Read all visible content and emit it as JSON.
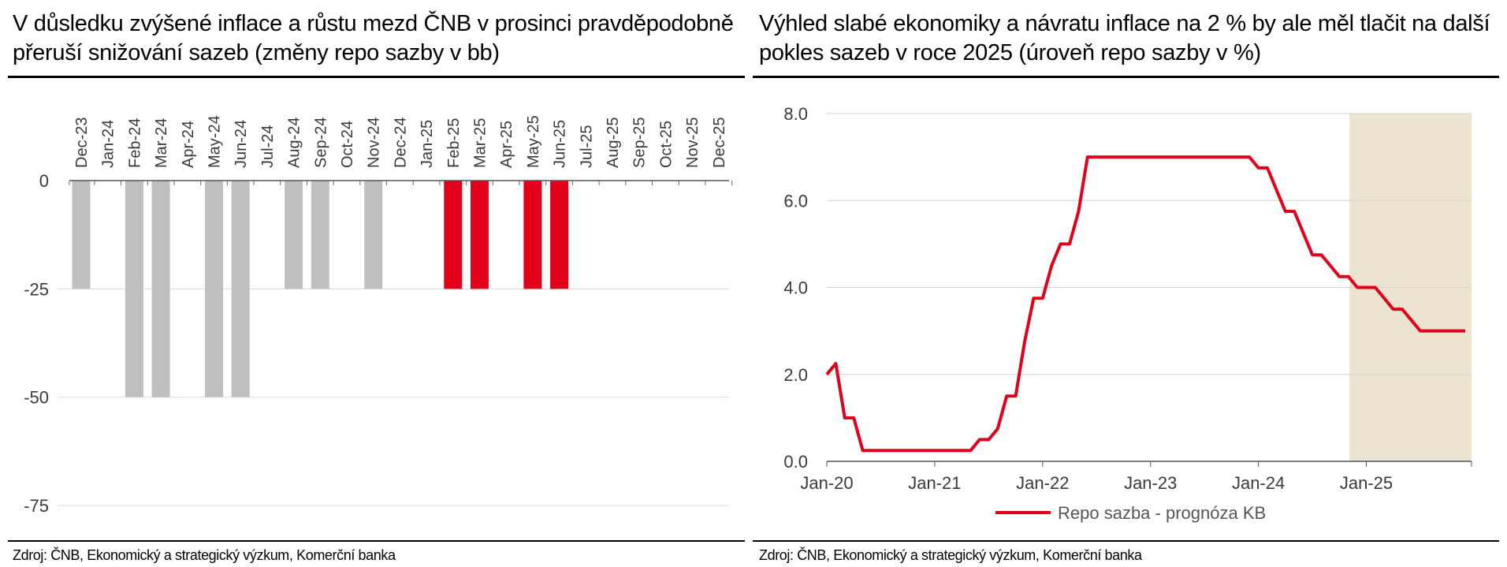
{
  "left": {
    "title": "V důsledku zvýšené inflace a růstu mezd ČNB v prosinci pravděpodobně přeruší snižování sazeb (změny repo sazby v bb)",
    "source": "Zdroj: ČNB, Ekonomický a strategický výzkum, Komerční banka"
  },
  "right": {
    "title": "Výhled slabé ekonomiky a návratu inflace na 2 % by ale měl tlačit na další pokles sazeb v roce 2025 (úroveň repo sazby v %)",
    "source": "Zdroj: ČNB, Ekonomický a strategický výzkum, Komerční banka"
  },
  "chart_data": [
    {
      "type": "bar",
      "categories": [
        "Dec-23",
        "Jan-24",
        "Feb-24",
        "Mar-24",
        "Apr-24",
        "May-24",
        "Jun-24",
        "Jul-24",
        "Aug-24",
        "Sep-24",
        "Oct-24",
        "Nov-24",
        "Dec-24",
        "Jan-25",
        "Feb-25",
        "Mar-25",
        "Apr-25",
        "May-25",
        "Jun-25",
        "Jul-25",
        "Aug-25",
        "Sep-25",
        "Oct-25",
        "Nov-25",
        "Dec-25"
      ],
      "values": [
        -25,
        0,
        -50,
        -50,
        0,
        -50,
        -50,
        0,
        -25,
        -25,
        0,
        -25,
        0,
        0,
        -25,
        -25,
        0,
        -25,
        -25,
        0,
        0,
        0,
        0,
        0,
        0
      ],
      "forecast_from": "Feb-25",
      "colors": {
        "actual": "#c0bebe",
        "forecast": "#e2001a"
      },
      "yticks": [
        0,
        -25,
        -50,
        -75
      ],
      "ylim": [
        -75,
        0
      ],
      "x_axis_position": "top",
      "grid": true
    },
    {
      "type": "line",
      "series": [
        {
          "name": "Repo sazba - prognóza KB",
          "color": "#e2001a",
          "points": [
            [
              "2020-01",
              2.0
            ],
            [
              "2020-02",
              2.25
            ],
            [
              "2020-03",
              1.0
            ],
            [
              "2020-04",
              1.0
            ],
            [
              "2020-05",
              0.25
            ],
            [
              "2020-06",
              0.25
            ],
            [
              "2020-12",
              0.25
            ],
            [
              "2021-05",
              0.25
            ],
            [
              "2021-06",
              0.5
            ],
            [
              "2021-07",
              0.5
            ],
            [
              "2021-08",
              0.75
            ],
            [
              "2021-09",
              1.5
            ],
            [
              "2021-10",
              1.5
            ],
            [
              "2021-11",
              2.75
            ],
            [
              "2021-12",
              3.75
            ],
            [
              "2022-01",
              3.75
            ],
            [
              "2022-02",
              4.5
            ],
            [
              "2022-03",
              5.0
            ],
            [
              "2022-04",
              5.0
            ],
            [
              "2022-05",
              5.75
            ],
            [
              "2022-06",
              7.0
            ],
            [
              "2022-07",
              7.0
            ],
            [
              "2023-12",
              7.0
            ],
            [
              "2024-01",
              6.75
            ],
            [
              "2024-02",
              6.75
            ],
            [
              "2024-03",
              6.25
            ],
            [
              "2024-04",
              5.75
            ],
            [
              "2024-05",
              5.75
            ],
            [
              "2024-06",
              5.25
            ],
            [
              "2024-07",
              4.75
            ],
            [
              "2024-08",
              4.75
            ],
            [
              "2024-09",
              4.5
            ],
            [
              "2024-10",
              4.25
            ],
            [
              "2024-11",
              4.25
            ],
            [
              "2024-12",
              4.0
            ],
            [
              "2025-01",
              4.0
            ],
            [
              "2025-02",
              4.0
            ],
            [
              "2025-03",
              3.75
            ],
            [
              "2025-04",
              3.5
            ],
            [
              "2025-05",
              3.5
            ],
            [
              "2025-06",
              3.25
            ],
            [
              "2025-07",
              3.0
            ],
            [
              "2025-12",
              3.0
            ]
          ]
        }
      ],
      "xticks": [
        "Jan-20",
        "Jan-21",
        "Jan-22",
        "Jan-23",
        "Jan-24",
        "Jan-25"
      ],
      "yticks": [
        "0.0",
        "2.0",
        "4.0",
        "6.0",
        "8.0"
      ],
      "ylim": [
        0,
        8
      ],
      "xlim": [
        "2020-01",
        "2025-12"
      ],
      "forecast_shade": {
        "from": "2024-12",
        "to": "2025-12",
        "color": "#ece4d1"
      },
      "grid": true,
      "legend": "bottom"
    }
  ]
}
